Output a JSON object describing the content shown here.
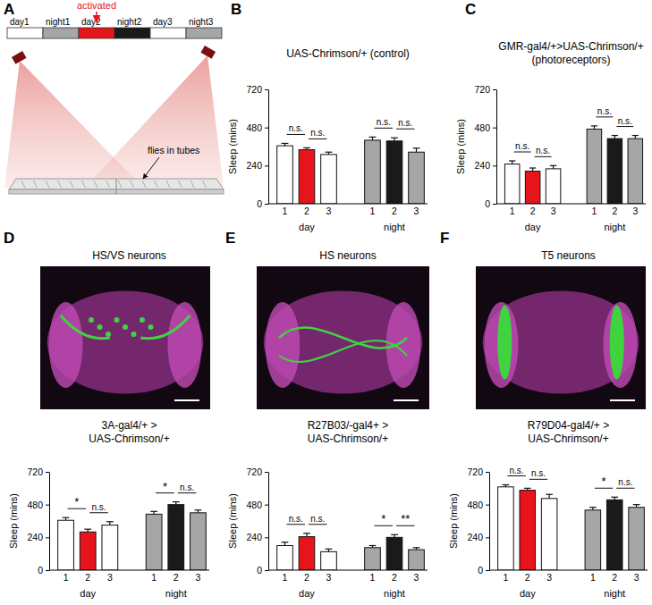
{
  "panel_a": {
    "label": "A",
    "activated": "activated",
    "periods": [
      "day1",
      "night1",
      "day2",
      "night2",
      "day3",
      "night3"
    ],
    "period_colors": [
      "#ffffff",
      "#a6a6a6",
      "#e8141c",
      "#1a1a1a",
      "#ffffff",
      "#a6a6a6"
    ],
    "flies_label": "flies in tubes"
  },
  "chart_data": [
    {
      "panel_label": "B",
      "type": "bar",
      "title": "UAS-Chrimson/+ (control)",
      "y_label": "Sleep (mins)",
      "categories": [
        "1",
        "2",
        "3",
        "1",
        "2",
        "3"
      ],
      "groups": [
        "day",
        "night"
      ],
      "values": [
        365,
        340,
        310,
        400,
        395,
        325
      ],
      "errors": [
        15,
        12,
        15,
        20,
        20,
        25
      ],
      "colors": [
        "#ffffff",
        "#e8141c",
        "#ffffff",
        "#a6a6a6",
        "#1a1a1a",
        "#a6a6a6"
      ],
      "ylim": [
        0,
        720
      ],
      "yticks": [
        0,
        240,
        480,
        720
      ],
      "significance": [
        "n.s.",
        "n.s.",
        "n.s.",
        "n.s."
      ]
    },
    {
      "panel_label": "C",
      "type": "bar",
      "title": "GMR-gal4/+>UAS-Chrimson/+\n(photoreceptors)",
      "y_label": "Sleep (mins)",
      "categories": [
        "1",
        "2",
        "3",
        "1",
        "2",
        "3"
      ],
      "groups": [
        "day",
        "night"
      ],
      "values": [
        250,
        205,
        220,
        470,
        410,
        410
      ],
      "errors": [
        20,
        20,
        20,
        20,
        20,
        20
      ],
      "colors": [
        "#ffffff",
        "#e8141c",
        "#ffffff",
        "#a6a6a6",
        "#1a1a1a",
        "#a6a6a6"
      ],
      "ylim": [
        0,
        720
      ],
      "yticks": [
        0,
        240,
        480,
        720
      ],
      "significance": [
        "n.s.",
        "n.s.",
        "n.s.",
        "n.s."
      ]
    },
    {
      "panel_label": "D",
      "type": "bar",
      "title": "HS/VS neurons",
      "subtitle": "3A-gal4/+ >\nUAS-Chrimson/+",
      "y_label": "Sleep (mins)",
      "categories": [
        "1",
        "2",
        "3",
        "1",
        "2",
        "3"
      ],
      "groups": [
        "day",
        "night"
      ],
      "values": [
        365,
        280,
        330,
        410,
        480,
        420
      ],
      "errors": [
        20,
        20,
        25,
        20,
        20,
        20
      ],
      "colors": [
        "#ffffff",
        "#e8141c",
        "#ffffff",
        "#a6a6a6",
        "#1a1a1a",
        "#a6a6a6"
      ],
      "ylim": [
        0,
        720
      ],
      "yticks": [
        0,
        240,
        480,
        720
      ],
      "significance": [
        "*",
        "n.s.",
        "*",
        "n.s."
      ]
    },
    {
      "panel_label": "E",
      "type": "bar",
      "title": "HS neurons",
      "subtitle": "R27B03/-gal4+ >\nUAS-Chrimson/+",
      "y_label": "Sleep (mins)",
      "categories": [
        "1",
        "2",
        "3",
        "1",
        "2",
        "3"
      ],
      "groups": [
        "day",
        "night"
      ],
      "values": [
        180,
        245,
        135,
        165,
        240,
        150
      ],
      "errors": [
        25,
        25,
        20,
        15,
        20,
        15
      ],
      "colors": [
        "#ffffff",
        "#e8141c",
        "#ffffff",
        "#a6a6a6",
        "#1a1a1a",
        "#a6a6a6"
      ],
      "ylim": [
        0,
        720
      ],
      "yticks": [
        0,
        240,
        480,
        720
      ],
      "significance": [
        "n.s.",
        "n.s.",
        "*",
        "**"
      ]
    },
    {
      "panel_label": "F",
      "type": "bar",
      "title": "T5 neurons",
      "subtitle": "R79D04-gal4/+ >\nUAS-Chrimson/+",
      "y_label": "Sleep (mins)",
      "categories": [
        "1",
        "2",
        "3",
        "1",
        "2",
        "3"
      ],
      "groups": [
        "day",
        "night"
      ],
      "values": [
        610,
        585,
        525,
        440,
        515,
        460
      ],
      "errors": [
        15,
        15,
        30,
        20,
        20,
        20
      ],
      "colors": [
        "#ffffff",
        "#e8141c",
        "#ffffff",
        "#a6a6a6",
        "#1a1a1a",
        "#a6a6a6"
      ],
      "ylim": [
        0,
        720
      ],
      "yticks": [
        0,
        240,
        480,
        720
      ],
      "significance": [
        "n.s.",
        "n.s.",
        "*",
        "n.s."
      ]
    }
  ]
}
